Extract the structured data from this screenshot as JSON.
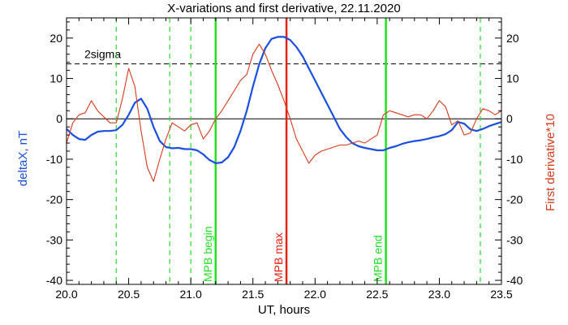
{
  "chart_data": {
    "type": "line",
    "title": "X-variations and first derivative, 22.11.2020",
    "xlabel": "UT, hours",
    "ylabel_left": "deltaX, nT",
    "ylabel_right": "First derivative*10",
    "xlim": [
      20.0,
      23.5
    ],
    "ylim": [
      -41,
      25
    ],
    "x_ticks": [
      20.0,
      20.5,
      21.0,
      21.5,
      22.0,
      22.5,
      23.0,
      23.5
    ],
    "x_tick_labels": [
      "20.0",
      "20.5",
      "21.0",
      "21.5",
      "22.0",
      "22.5",
      "23.0",
      "23.5"
    ],
    "y_ticks": [
      20,
      10,
      0,
      -10,
      -20,
      -30,
      -40
    ],
    "y_tick_labels": [
      "20",
      "10",
      "0",
      "-10",
      "-20",
      "-30",
      "-40"
    ],
    "sigma_level": 13.6,
    "sigma_label": "2sigma",
    "colors": {
      "deltaX": "#1a4fe0",
      "derivative": "#d83a1a",
      "mpb": "#22e022",
      "mpb_max": "#e82010",
      "axis": "#000000",
      "left_label": "#1a4fe0",
      "right_label": "#d83a1a"
    },
    "vertical_markers": [
      {
        "x": 20.4,
        "style": "dashed",
        "color": "green",
        "label": ""
      },
      {
        "x": 20.83,
        "style": "dashed",
        "color": "green",
        "label": ""
      },
      {
        "x": 21.0,
        "style": "dashed",
        "color": "green",
        "label": ""
      },
      {
        "x": 21.2,
        "style": "solid",
        "color": "green",
        "label": "MPB begin"
      },
      {
        "x": 21.77,
        "style": "solid",
        "color": "red",
        "label": "MPB max"
      },
      {
        "x": 22.57,
        "style": "solid",
        "color": "green",
        "label": "MPB end"
      },
      {
        "x": 23.33,
        "style": "dashed",
        "color": "green",
        "label": ""
      }
    ],
    "series": [
      {
        "name": "deltaX",
        "x": [
          20.0,
          20.05,
          20.1,
          20.15,
          20.2,
          20.25,
          20.3,
          20.35,
          20.4,
          20.45,
          20.5,
          20.55,
          20.6,
          20.65,
          20.7,
          20.75,
          20.8,
          20.85,
          20.9,
          20.95,
          21.0,
          21.05,
          21.1,
          21.15,
          21.2,
          21.25,
          21.3,
          21.35,
          21.4,
          21.45,
          21.5,
          21.55,
          21.6,
          21.65,
          21.7,
          21.75,
          21.8,
          21.85,
          21.9,
          21.95,
          22.0,
          22.05,
          22.1,
          22.15,
          22.2,
          22.25,
          22.3,
          22.35,
          22.4,
          22.45,
          22.5,
          22.55,
          22.6,
          22.65,
          22.7,
          22.75,
          22.8,
          22.85,
          22.9,
          22.95,
          23.0,
          23.05,
          23.1,
          23.15,
          23.2,
          23.25,
          23.3,
          23.35,
          23.4,
          23.45,
          23.5
        ],
        "values": [
          -2.5,
          -4.0,
          -5.0,
          -5.2,
          -4.0,
          -3.2,
          -3.0,
          -3.0,
          -2.8,
          -1.5,
          1.0,
          4.0,
          5.0,
          2.5,
          -2.0,
          -5.5,
          -7.0,
          -7.3,
          -7.2,
          -7.5,
          -7.5,
          -7.8,
          -8.8,
          -10.2,
          -11.0,
          -10.8,
          -9.5,
          -7.0,
          -3.0,
          2.0,
          8.0,
          13.5,
          17.5,
          19.8,
          20.3,
          20.3,
          19.5,
          17.8,
          15.5,
          12.5,
          9.5,
          6.5,
          3.5,
          0.5,
          -2.5,
          -4.5,
          -6.0,
          -6.8,
          -7.2,
          -7.5,
          -7.8,
          -7.8,
          -7.2,
          -6.8,
          -6.2,
          -5.8,
          -5.5,
          -5.3,
          -5.0,
          -4.6,
          -4.3,
          -3.8,
          -2.8,
          -0.8,
          -1.2,
          -2.6,
          -3.0,
          -2.5,
          -1.8,
          -1.3,
          -0.8
        ]
      },
      {
        "name": "First derivative*10",
        "x": [
          20.0,
          20.05,
          20.1,
          20.15,
          20.2,
          20.25,
          20.3,
          20.35,
          20.4,
          20.45,
          20.5,
          20.55,
          20.6,
          20.65,
          20.7,
          20.75,
          20.8,
          20.85,
          20.9,
          20.95,
          21.0,
          21.05,
          21.1,
          21.15,
          21.2,
          21.25,
          21.3,
          21.35,
          21.4,
          21.45,
          21.5,
          21.55,
          21.6,
          21.65,
          21.7,
          21.75,
          21.8,
          21.85,
          21.9,
          21.95,
          22.0,
          22.05,
          22.1,
          22.15,
          22.2,
          22.25,
          22.3,
          22.35,
          22.4,
          22.45,
          22.5,
          22.55,
          22.6,
          22.65,
          22.7,
          22.75,
          22.8,
          22.85,
          22.9,
          22.95,
          23.0,
          23.05,
          23.1,
          23.15,
          23.2,
          23.25,
          23.3,
          23.35,
          23.4,
          23.45,
          23.5
        ],
        "values": [
          -6.0,
          -1.0,
          1.0,
          1.5,
          4.5,
          2.0,
          0.5,
          -1.0,
          -1.0,
          5.0,
          12.5,
          8.0,
          -3.0,
          -12.0,
          -15.5,
          -10.0,
          -5.0,
          -1.0,
          -2.0,
          -3.0,
          -1.5,
          -1.0,
          -5.0,
          -3.0,
          0.0,
          2.0,
          4.5,
          7.0,
          9.5,
          11.0,
          16.0,
          18.5,
          16.0,
          12.0,
          8.5,
          4.5,
          0.0,
          -5.0,
          -8.0,
          -11.0,
          -9.0,
          -8.0,
          -7.5,
          -7.0,
          -6.5,
          -6.5,
          -6.0,
          -5.5,
          -6.0,
          -5.0,
          -4.0,
          1.0,
          2.0,
          1.5,
          1.0,
          0.5,
          1.0,
          1.0,
          0.0,
          2.0,
          4.5,
          3.0,
          -1.5,
          -0.5,
          -4.0,
          -3.5,
          0.0,
          2.5,
          2.0,
          1.0,
          2.0
        ]
      }
    ]
  }
}
